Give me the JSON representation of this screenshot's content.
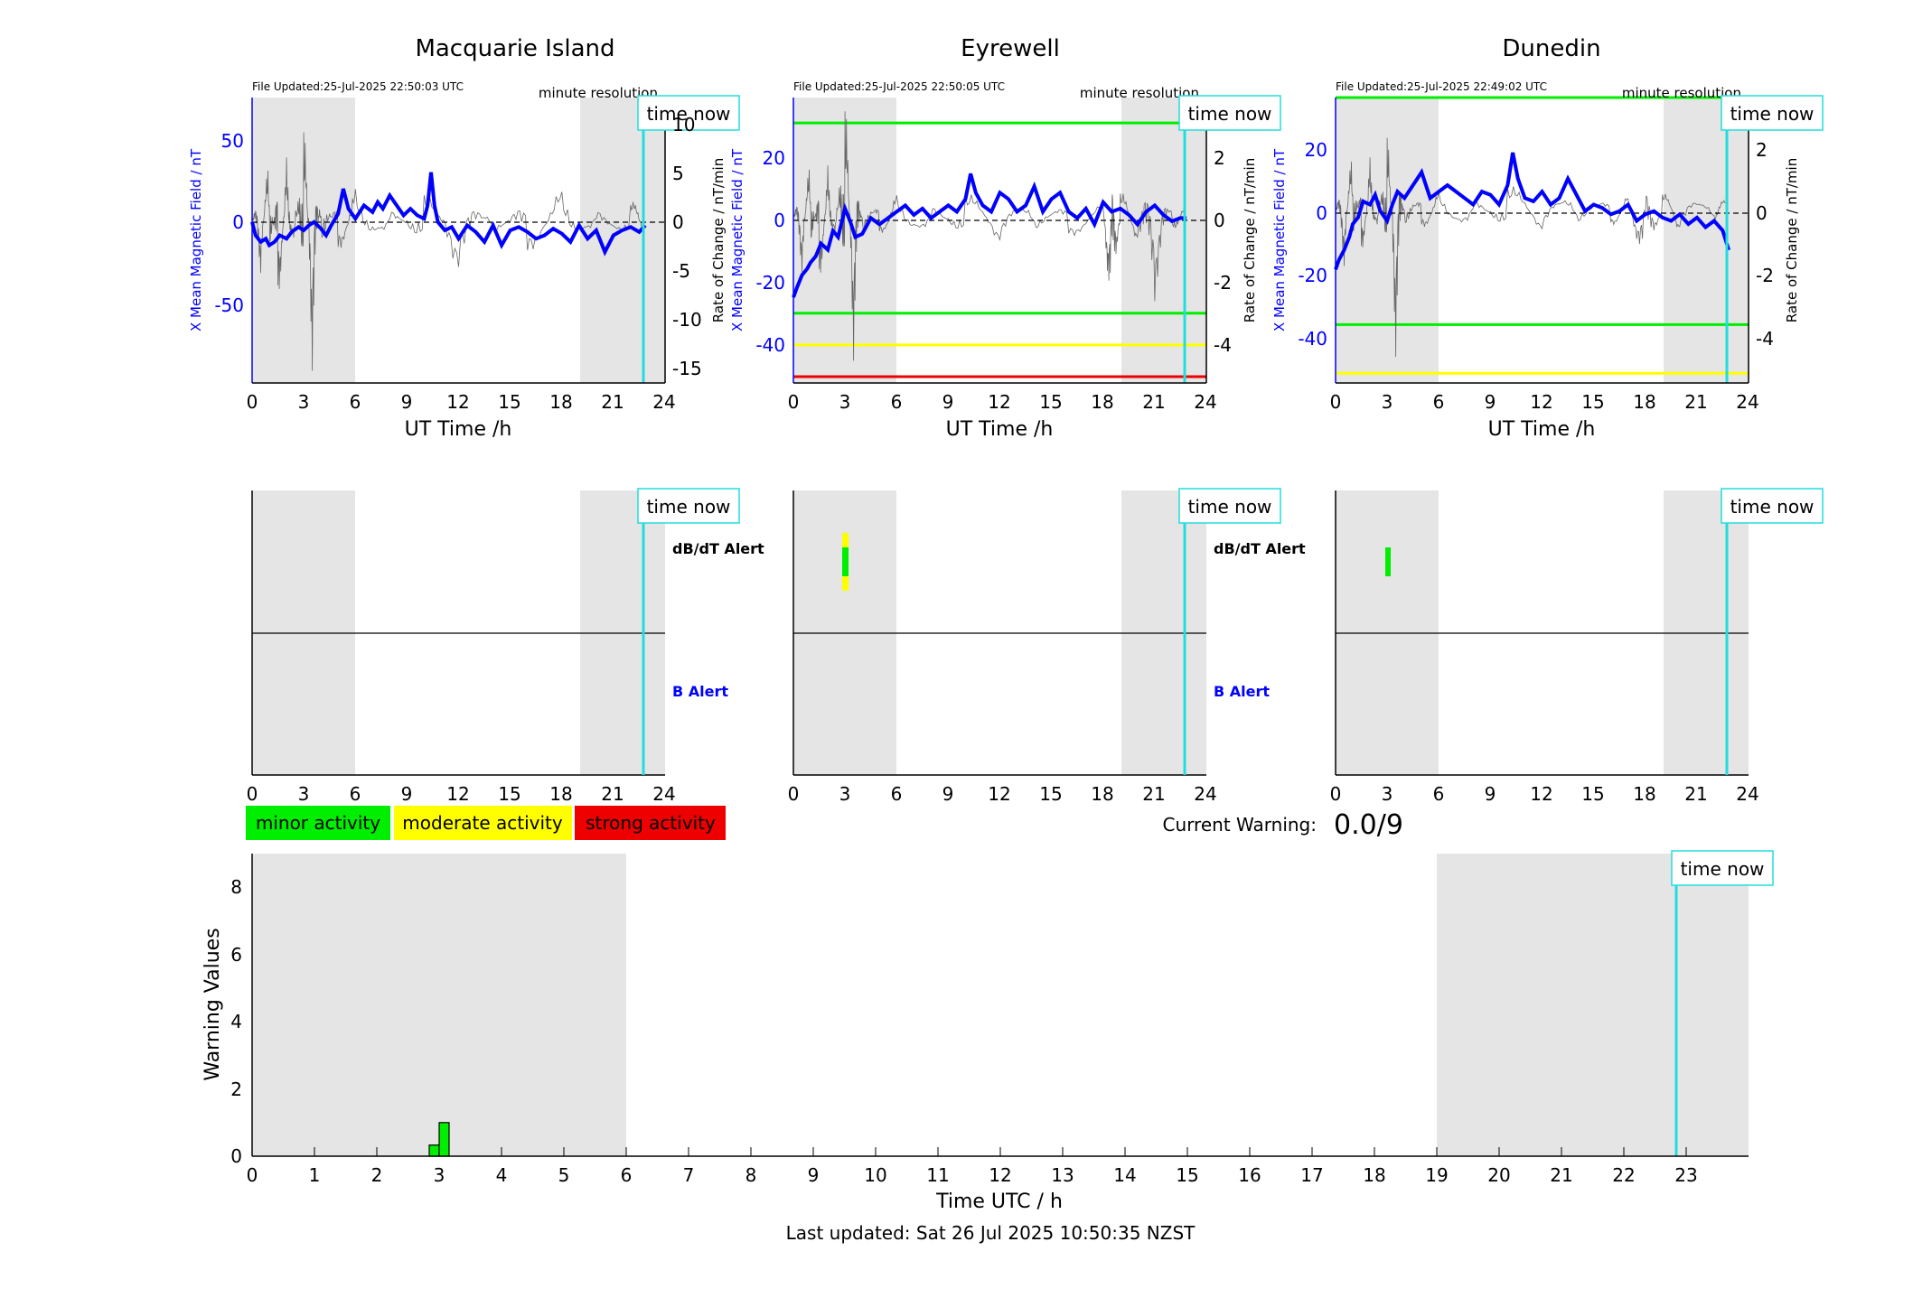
{
  "colors": {
    "field": "#0000ff",
    "rate": "#555555",
    "time_now": "#22dddd",
    "night": "#e5e5e5",
    "minor": "#00ee00",
    "moderate": "#ffff00",
    "strong": "#ee0000"
  },
  "stations": [
    {
      "name": "Macquarie Island",
      "file_updated": "File Updated:25-Jul-2025 22:50:03 UTC",
      "resolution": "minute resolution",
      "time_now_label": "time now",
      "dbdt_label": "dB/dT Alert",
      "b_label": "B Alert"
    },
    {
      "name": "Eyrewell",
      "file_updated": "File Updated:25-Jul-2025 22:50:05 UTC",
      "resolution": "minute resolution",
      "time_now_label": "time now",
      "dbdt_label": "dB/dT Alert",
      "b_label": "B Alert"
    },
    {
      "name": "Dunedin",
      "file_updated": "File Updated:25-Jul-2025 22:49:02 UTC",
      "resolution": "minute resolution",
      "time_now_label": "time now",
      "dbdt_label": "",
      "b_label": ""
    }
  ],
  "legend": {
    "minor": "minor activity",
    "moderate": "moderate activity",
    "strong": "strong activity"
  },
  "current_warning": {
    "label": "Current Warning:",
    "value": "0.0/9"
  },
  "bottom": {
    "time_now_label": "time now",
    "last_updated": "Last updated: Sat 26 Jul 2025 10:50:35 NZST"
  },
  "chart_data": [
    {
      "type": "line",
      "title": "Macquarie Island",
      "xlabel": "UT Time /h",
      "ylabel_left": "X Mean Magnetic Field / nT",
      "ylabel_right": "Rate of Change / nT/min",
      "xlim": [
        0,
        24
      ],
      "ylim_left": [
        -97,
        75
      ],
      "ylim_right": [
        -16.2,
        12.5
      ],
      "xticks": [
        "0",
        "3",
        "6",
        "9",
        "12",
        "15",
        "18",
        "21",
        "24"
      ],
      "yticks_left": [
        "-50",
        "0",
        "50"
      ],
      "yticks_right": [
        "-15",
        "-10",
        "-5",
        "0",
        "5",
        "10"
      ],
      "night_shading": [
        [
          0,
          6
        ],
        [
          19,
          24
        ]
      ],
      "time_now": 22.85,
      "threshold_lines": [],
      "series": [
        {
          "name": "X Mean Magnetic Field",
          "x": [
            0,
            0.2,
            0.5,
            0.8,
            1,
            1.3,
            1.6,
            2,
            2.3,
            2.7,
            3,
            3.3,
            3.6,
            4,
            4.3,
            4.6,
            5,
            5.3,
            5.6,
            6,
            6.5,
            7,
            7.3,
            7.6,
            8,
            8.4,
            8.8,
            9.2,
            9.6,
            10,
            10.2,
            10.4,
            10.6,
            10.8,
            11.2,
            11.6,
            12,
            12.5,
            13,
            13.5,
            14,
            14.5,
            15,
            15.5,
            16,
            16.5,
            17,
            17.5,
            18,
            18.5,
            19,
            19.5,
            20,
            20.5,
            21,
            21.5,
            22,
            22.5,
            22.85
          ],
          "y": [
            0,
            -8,
            -12,
            -10,
            -14,
            -12,
            -8,
            -10,
            -6,
            -3,
            -5,
            -2,
            0,
            -4,
            -8,
            -2,
            5,
            20,
            8,
            2,
            10,
            6,
            12,
            8,
            16,
            10,
            4,
            8,
            4,
            2,
            10,
            30,
            10,
            0,
            -5,
            -3,
            -10,
            -2,
            -6,
            -12,
            -2,
            -14,
            -5,
            -3,
            -6,
            -10,
            -8,
            -4,
            -7,
            -12,
            -2,
            -10,
            -5,
            -18,
            -8,
            -5,
            -3,
            -6,
            -2
          ]
        },
        {
          "name": "Rate of Change",
          "x": [
            0,
            0.5,
            1,
            1.5,
            2,
            2.5,
            3,
            3.5,
            4,
            5,
            6,
            8,
            10,
            12,
            14,
            16,
            18,
            20,
            22,
            22.85
          ],
          "y": [
            0,
            -3,
            5,
            -6,
            4,
            -2,
            8,
            -10,
            3,
            -2,
            2,
            -1,
            2,
            -3,
            1,
            -2,
            2,
            -1,
            1,
            0
          ]
        }
      ]
    },
    {
      "type": "line",
      "title": "Eyrewell",
      "xlabel": "UT Time /h",
      "ylabel_left": "X Mean Magnetic Field / nT",
      "ylabel_right": "Rate of Change / nT/min",
      "xlim": [
        0,
        24
      ],
      "ylim_left": [
        -52,
        38
      ],
      "ylim_right": [
        -5.2,
        3.8
      ],
      "xticks": [
        "0",
        "3",
        "6",
        "9",
        "12",
        "15",
        "18",
        "21",
        "24"
      ],
      "yticks_left": [
        "-40",
        "-20",
        "0",
        "20"
      ],
      "yticks_right": [
        "-4",
        "-2",
        "0",
        "2"
      ],
      "night_shading": [
        [
          0,
          6
        ],
        [
          19,
          24
        ]
      ],
      "time_now": 22.85,
      "threshold_lines": [
        {
          "value": 30,
          "color": "#00ee00"
        },
        {
          "value": -30,
          "color": "#00ee00"
        },
        {
          "value": -40,
          "color": "#ffff00"
        },
        {
          "value": -50,
          "color": "#ee0000"
        }
      ],
      "series": [
        {
          "name": "X Mean Magnetic Field",
          "x": [
            0,
            0.2,
            0.5,
            0.8,
            1,
            1.3,
            1.6,
            2,
            2.3,
            2.6,
            3,
            3.3,
            3.6,
            4,
            4.5,
            5,
            5.5,
            6,
            6.5,
            7,
            7.5,
            8,
            8.5,
            9,
            9.5,
            10,
            10.3,
            10.6,
            11,
            11.5,
            12,
            12.5,
            13,
            13.5,
            14,
            14.5,
            15,
            15.5,
            16,
            16.5,
            17,
            17.5,
            18,
            18.5,
            19,
            19.5,
            20,
            20.5,
            21,
            21.5,
            22,
            22.5,
            22.85
          ],
          "y": [
            -25,
            -22,
            -18,
            -16,
            -14,
            -12,
            -8,
            -10,
            -4,
            -6,
            3,
            -1,
            -6,
            -5,
            0,
            -2,
            0,
            2,
            4,
            1,
            3,
            0,
            2,
            4,
            2,
            6,
            14,
            8,
            4,
            2,
            8,
            6,
            2,
            4,
            10,
            2,
            6,
            8,
            2,
            0,
            3,
            -2,
            5,
            2,
            3,
            1,
            -2,
            2,
            4,
            1,
            -1,
            0,
            0
          ]
        },
        {
          "name": "Rate of Change",
          "x": [
            0,
            0.5,
            1,
            1.5,
            2,
            2.5,
            3,
            3.5,
            4,
            5,
            6,
            8,
            10,
            12,
            14,
            16,
            18,
            18.5,
            19,
            20,
            21,
            22,
            22.85
          ],
          "y": [
            0,
            -1,
            1.5,
            -1.5,
            1,
            -0.5,
            3,
            -3,
            0.5,
            -0.3,
            0.4,
            -0.3,
            0.5,
            -0.4,
            0.3,
            -0.3,
            0.2,
            -2,
            0.5,
            -0.4,
            -1.5,
            0.3,
            0
          ]
        }
      ]
    },
    {
      "type": "line",
      "title": "Dunedin",
      "xlabel": "UT Time /h",
      "ylabel_left": "X Mean Magnetic Field / nT",
      "ylabel_right": "Rate of Change / nT/min",
      "xlim": [
        0,
        24
      ],
      "ylim_left": [
        -53,
        35
      ],
      "ylim_right": [
        -5.3,
        3.5
      ],
      "xticks": [
        "0",
        "3",
        "6",
        "9",
        "12",
        "15",
        "18",
        "21",
        "24"
      ],
      "yticks_left": [
        "-40",
        "-20",
        "0",
        "20"
      ],
      "yticks_right": [
        "-4",
        "-2",
        "0",
        "2"
      ],
      "night_shading": [
        [
          0,
          6
        ],
        [
          19,
          24
        ]
      ],
      "time_now": 22.85,
      "threshold_lines": [
        {
          "value": 35,
          "color": "#00ee00"
        },
        {
          "value": -35,
          "color": "#00ee00"
        },
        {
          "value": -50,
          "color": "#ffff00"
        }
      ],
      "series": [
        {
          "name": "X Mean Magnetic Field",
          "x": [
            0,
            0.2,
            0.5,
            0.8,
            1,
            1.3,
            1.6,
            2,
            2.3,
            2.6,
            3,
            3.3,
            3.6,
            4,
            4.5,
            5,
            5.5,
            6,
            6.5,
            7,
            7.5,
            8,
            8.5,
            9,
            9.5,
            10,
            10.3,
            10.6,
            11,
            11.5,
            12,
            12.5,
            13,
            13.5,
            14,
            14.5,
            15,
            15.5,
            16,
            16.5,
            17,
            17.5,
            18,
            18.5,
            19,
            19.5,
            20,
            20.5,
            21,
            21.5,
            22,
            22.5,
            22.85
          ],
          "y": [
            -18,
            -15,
            -12,
            -8,
            -4,
            -2,
            3,
            2,
            5,
            0,
            -3,
            2,
            6,
            4,
            8,
            12,
            4,
            6,
            8,
            6,
            4,
            2,
            6,
            5,
            2,
            8,
            18,
            10,
            4,
            3,
            6,
            2,
            4,
            10,
            5,
            0,
            2,
            1,
            -1,
            0,
            2,
            -3,
            -1,
            0,
            -2,
            -3,
            -1,
            -4,
            -2,
            -5,
            -3,
            -6,
            -12
          ]
        },
        {
          "name": "Rate of Change",
          "x": [
            0,
            0.5,
            1,
            1.5,
            2,
            2.5,
            3,
            3.5,
            4,
            5,
            6,
            8,
            10,
            12,
            14,
            16,
            17,
            18,
            19,
            20,
            22,
            22.85
          ],
          "y": [
            0,
            -1,
            1.5,
            -1,
            1,
            -0.5,
            2,
            -3,
            0.5,
            -0.3,
            0.3,
            -0.3,
            0.5,
            -0.3,
            0.3,
            -0.2,
            0.2,
            -1,
            0.3,
            -0.3,
            0.2,
            0
          ]
        }
      ]
    },
    {
      "type": "bar",
      "title": "",
      "xlabel": "Time UTC / h",
      "ylabel": "Warning Values",
      "xlim": [
        0,
        24
      ],
      "ylim": [
        0,
        9
      ],
      "xticks": [
        "0",
        "1",
        "2",
        "3",
        "4",
        "5",
        "6",
        "7",
        "8",
        "9",
        "10",
        "11",
        "12",
        "13",
        "14",
        "15",
        "16",
        "17",
        "18",
        "19",
        "20",
        "21",
        "22",
        "23"
      ],
      "yticks": [
        "0",
        "2",
        "4",
        "6",
        "8"
      ],
      "night_shading": [
        [
          0,
          6
        ],
        [
          19,
          24
        ]
      ],
      "time_now": 22.85,
      "x": [
        2.92,
        3.08
      ],
      "values": [
        0.33,
        1.0
      ]
    }
  ]
}
